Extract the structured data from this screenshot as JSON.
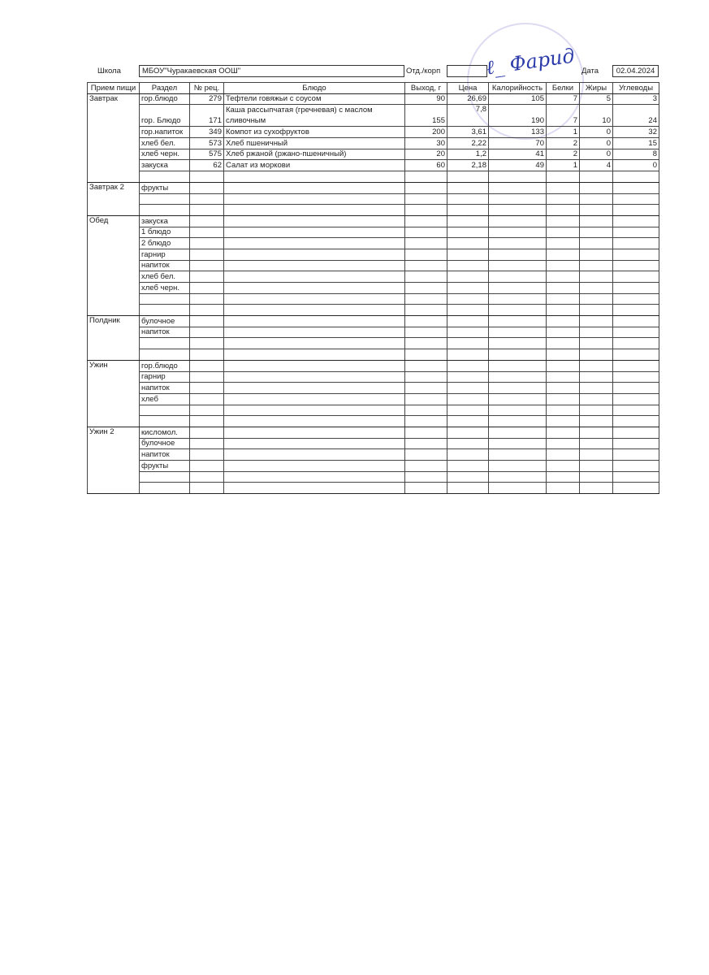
{
  "header": {
    "school_label": "Школа",
    "school_value": "МБОУ\"Чуракаевская ООШ\"",
    "dept_label": "Отд./корп",
    "dept_value": "",
    "date_label": "Дата",
    "date_value": "02.04.2024"
  },
  "table": {
    "columns": [
      "Прием пищи",
      "Раздел",
      "№ рец.",
      "Блюдо",
      "Выход, г",
      "Цена",
      "Калорийность",
      "Белки",
      "Жиры",
      "Углеводы"
    ],
    "meals": [
      {
        "name": "Завтрак",
        "rows": [
          [
            "гор.блюдо",
            "279",
            "Тефтели говяжьи с соусом",
            "90",
            "26,69",
            "105",
            "7",
            "5",
            "3"
          ],
          [
            "гор. Блюдо",
            "171",
            "Каша рассыпчатая (гречневая) с маслом сливочным",
            "155",
            "7,8",
            "190",
            "7",
            "10",
            "24"
          ],
          [
            "гор.напиток",
            "349",
            "Компот из сухофруктов",
            "200",
            "3,61",
            "133",
            "1",
            "0",
            "32"
          ],
          [
            "хлеб бел.",
            "573",
            "Хлеб пшеничный",
            "30",
            "2,22",
            "70",
            "2",
            "0",
            "15"
          ],
          [
            "хлеб черн.",
            "575",
            "Хлеб ржаной (ржано-пшеничный)",
            "20",
            "1,2",
            "41",
            "2",
            "0",
            "8"
          ],
          [
            "закуска",
            "62",
            "Салат из моркови",
            "60",
            "2,18",
            "49",
            "1",
            "4",
            "0"
          ],
          [
            "",
            "",
            "",
            "",
            "",
            "",
            "",
            "",
            ""
          ]
        ]
      },
      {
        "name": "Завтрак 2",
        "rows": [
          [
            "фрукты"
          ],
          [
            ""
          ],
          [
            ""
          ]
        ]
      },
      {
        "name": "Обед",
        "rows": [
          [
            "закуска"
          ],
          [
            "1 блюдо"
          ],
          [
            "2 блюдо"
          ],
          [
            "гарнир"
          ],
          [
            "напиток"
          ],
          [
            "хлеб бел."
          ],
          [
            "хлеб черн."
          ],
          [
            ""
          ],
          [
            ""
          ]
        ]
      },
      {
        "name": "Полдник",
        "rows": [
          [
            "булочное"
          ],
          [
            "напиток"
          ],
          [
            ""
          ],
          [
            ""
          ]
        ]
      },
      {
        "name": "Ужин",
        "rows": [
          [
            "гор.блюдо"
          ],
          [
            "гарнир"
          ],
          [
            "напиток"
          ],
          [
            "хлеб"
          ],
          [
            ""
          ],
          [
            ""
          ]
        ]
      },
      {
        "name": "Ужин 2",
        "rows": [
          [
            "кисломол."
          ],
          [
            "булочное"
          ],
          [
            "напиток"
          ],
          [
            "фрукты"
          ],
          [
            ""
          ],
          [
            ""
          ]
        ]
      }
    ]
  }
}
